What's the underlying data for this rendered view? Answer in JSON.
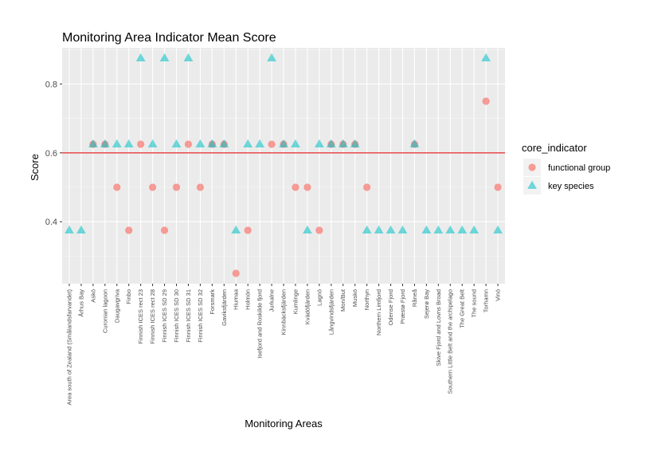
{
  "chart_data": {
    "type": "scatter",
    "title": "Monitoring Area Indicator Mean Score",
    "xlabel": "Monitoring Areas",
    "ylabel": "Score",
    "ylim": [
      0.22,
      0.905
    ],
    "yticks": [
      0.4,
      0.6,
      0.8
    ],
    "hline": {
      "y": 0.6,
      "color": "#e8383d"
    },
    "grid": true,
    "legend": {
      "title": "core_indicator",
      "position": "right"
    },
    "categories": [
      "Area south of Zealand (Smålandsfarvandet)",
      "Århus Bay",
      "Askö",
      "Curonian lagoon",
      "Daugavgriva",
      "Finbo",
      "Finnish ICES rect 23",
      "Finnish ICES rect 28",
      "Finnish ICES SD 29",
      "Finnish ICES SD 30",
      "Finnish ICES SD 31",
      "Finnish ICES SD 32",
      "Forsmark",
      "Gaviksfjärden",
      "Hiumaa",
      "Holmön",
      "Isefjord and Roskilde fjord",
      "Jurkalne",
      "Kinnbäcksfjärden",
      "Kumlinge",
      "Kvädöfjärden",
      "Lagnö",
      "Långvindsfjärden",
      "Mon/But",
      "Muskö",
      "Northyn",
      "Northern Limfjord",
      "Odense Fjord",
      "Præstø Fjord",
      "Råneå",
      "Sejerø Bay",
      "Skive Fjord and Lovns Broad",
      "Southern Little Belt and the archipelago",
      "The Great Belt",
      "The sound",
      "Torhamn",
      "Vinö"
    ],
    "series": [
      {
        "name": "functional group",
        "color": "#f8766d",
        "shape": "circle",
        "points": [
          {
            "x": "Askö",
            "y": 0.625
          },
          {
            "x": "Curonian lagoon",
            "y": 0.625
          },
          {
            "x": "Daugavgriva",
            "y": 0.5
          },
          {
            "x": "Finbo",
            "y": 0.375
          },
          {
            "x": "Finnish ICES rect 23",
            "y": 0.625
          },
          {
            "x": "Finnish ICES rect 28",
            "y": 0.5
          },
          {
            "x": "Finnish ICES SD 29",
            "y": 0.375
          },
          {
            "x": "Finnish ICES SD 30",
            "y": 0.5
          },
          {
            "x": "Finnish ICES SD 31",
            "y": 0.625
          },
          {
            "x": "Finnish ICES SD 32",
            "y": 0.5
          },
          {
            "x": "Forsmark",
            "y": 0.625
          },
          {
            "x": "Gaviksfjärden",
            "y": 0.625
          },
          {
            "x": "Hiumaa",
            "y": 0.25
          },
          {
            "x": "Holmön",
            "y": 0.375
          },
          {
            "x": "Jurkalne",
            "y": 0.625
          },
          {
            "x": "Kinnbäcksfjärden",
            "y": 0.625
          },
          {
            "x": "Kumlinge",
            "y": 0.5
          },
          {
            "x": "Kvädöfjärden",
            "y": 0.5
          },
          {
            "x": "Lagnö",
            "y": 0.375
          },
          {
            "x": "Långvindsfjärden",
            "y": 0.625
          },
          {
            "x": "Mon/But",
            "y": 0.625
          },
          {
            "x": "Muskö",
            "y": 0.625
          },
          {
            "x": "Northyn",
            "y": 0.5
          },
          {
            "x": "Råneå",
            "y": 0.625
          },
          {
            "x": "Torhamn",
            "y": 0.75
          },
          {
            "x": "Vinö",
            "y": 0.5
          }
        ]
      },
      {
        "name": "key species",
        "color": "#00bfc4",
        "shape": "triangle",
        "points": [
          {
            "x": "Area south of Zealand (Smålandsfarvandet)",
            "y": 0.375
          },
          {
            "x": "Århus Bay",
            "y": 0.375
          },
          {
            "x": "Askö",
            "y": 0.625
          },
          {
            "x": "Curonian lagoon",
            "y": 0.625
          },
          {
            "x": "Daugavgriva",
            "y": 0.625
          },
          {
            "x": "Finbo",
            "y": 0.625
          },
          {
            "x": "Finnish ICES rect 23",
            "y": 0.875
          },
          {
            "x": "Finnish ICES rect 28",
            "y": 0.625
          },
          {
            "x": "Finnish ICES SD 29",
            "y": 0.875
          },
          {
            "x": "Finnish ICES SD 30",
            "y": 0.625
          },
          {
            "x": "Finnish ICES SD 31",
            "y": 0.875
          },
          {
            "x": "Finnish ICES SD 32",
            "y": 0.625
          },
          {
            "x": "Forsmark",
            "y": 0.625
          },
          {
            "x": "Gaviksfjärden",
            "y": 0.625
          },
          {
            "x": "Hiumaa",
            "y": 0.375
          },
          {
            "x": "Holmön",
            "y": 0.625
          },
          {
            "x": "Isefjord and Roskilde fjord",
            "y": 0.625
          },
          {
            "x": "Jurkalne",
            "y": 0.875
          },
          {
            "x": "Kinnbäcksfjärden",
            "y": 0.625
          },
          {
            "x": "Kumlinge",
            "y": 0.625
          },
          {
            "x": "Kvädöfjärden",
            "y": 0.375
          },
          {
            "x": "Lagnö",
            "y": 0.625
          },
          {
            "x": "Långvindsfjärden",
            "y": 0.625
          },
          {
            "x": "Mon/But",
            "y": 0.625
          },
          {
            "x": "Muskö",
            "y": 0.625
          },
          {
            "x": "Northyn",
            "y": 0.375
          },
          {
            "x": "Northern Limfjord",
            "y": 0.375
          },
          {
            "x": "Odense Fjord",
            "y": 0.375
          },
          {
            "x": "Præstø Fjord",
            "y": 0.375
          },
          {
            "x": "Råneå",
            "y": 0.625
          },
          {
            "x": "Sejerø Bay",
            "y": 0.375
          },
          {
            "x": "Skive Fjord and Lovns Broad",
            "y": 0.375
          },
          {
            "x": "Southern Little Belt and the archipelago",
            "y": 0.375
          },
          {
            "x": "The Great Belt",
            "y": 0.375
          },
          {
            "x": "The sound",
            "y": 0.375
          },
          {
            "x": "Torhamn",
            "y": 0.875
          },
          {
            "x": "Vinö",
            "y": 0.375
          }
        ]
      }
    ]
  }
}
